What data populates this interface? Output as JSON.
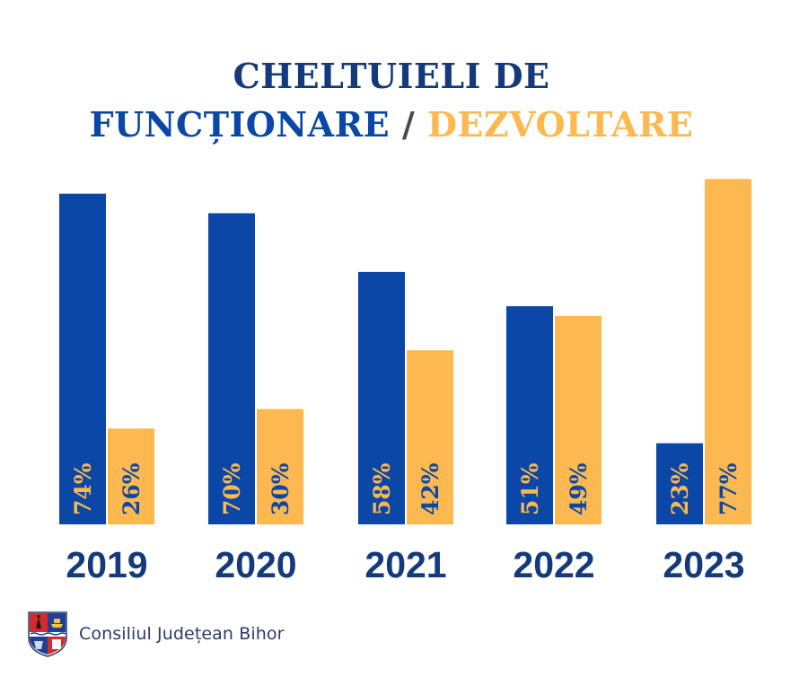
{
  "colors": {
    "functionare": "#0b47a6",
    "dezvoltare": "#fdb94f",
    "title_dark": "#143a7b",
    "slash": "#4a4a4a",
    "year_label": "#143a7b",
    "footer_text": "#2b3a6b"
  },
  "title": {
    "line1": "CHELTUIELI DE",
    "functionare": "FUNCȚIONARE",
    "slash": " / ",
    "dezvoltare": "DEZVOLTARE"
  },
  "footer": {
    "organization": "Consiliul Județean Bihor",
    "logo_icon": "coat-of-arms-icon"
  },
  "chart_data": {
    "type": "bar",
    "title": "CHELTUIELI DE FUNCȚIONARE / DEZVOLTARE",
    "xlabel": "",
    "ylabel": "",
    "categories": [
      "2019",
      "2020",
      "2021",
      "2022",
      "2023"
    ],
    "series": [
      {
        "name": "Funcționare",
        "color": "#0b47a6",
        "label_color": "#fdb94f",
        "values": [
          74,
          70,
          58,
          51,
          23
        ],
        "labels": [
          "74%",
          "70%",
          "58%",
          "51%",
          "23%"
        ]
      },
      {
        "name": "Dezvoltare",
        "color": "#fdb94f",
        "label_color": "#0b47a6",
        "values": [
          26,
          30,
          42,
          49,
          77
        ],
        "labels": [
          "26%",
          "30%",
          "42%",
          "49%",
          "77%"
        ]
      }
    ],
    "unit": "%",
    "ylim": [
      0,
      100
    ],
    "grid": false,
    "legend": "title-colored",
    "data_labels": "inside-bottom-rotated"
  }
}
